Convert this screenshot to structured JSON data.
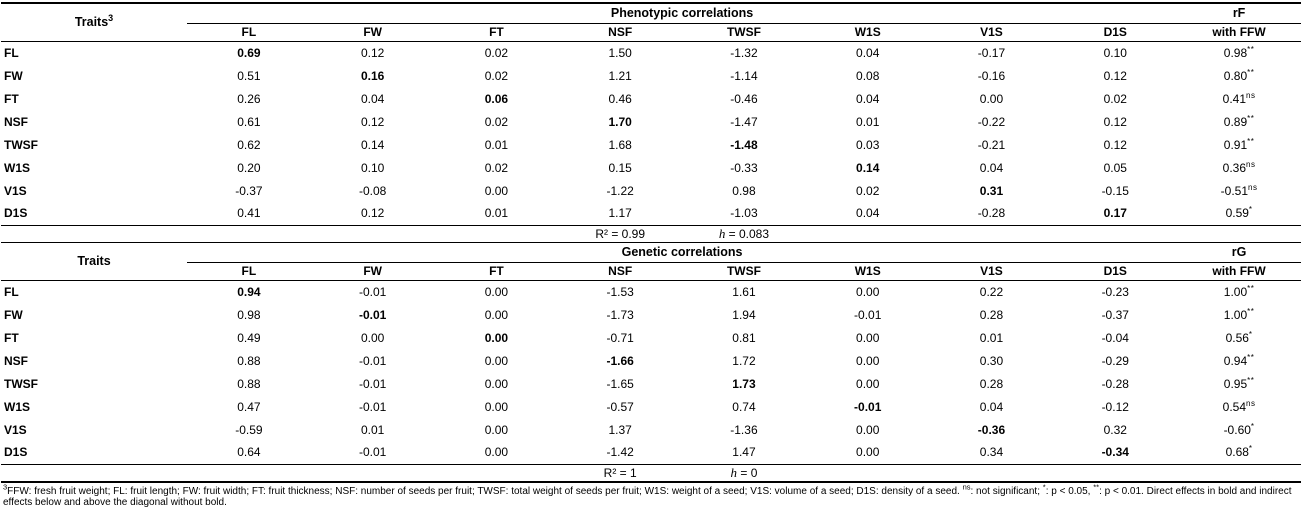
{
  "sections": [
    {
      "traits_label": "Traits",
      "traits_sup": "3",
      "spanner_label": "Phenotypic correlations",
      "r_label": "rF",
      "with_ffw_label": "with FFW",
      "columns": [
        "FL",
        "FW",
        "FT",
        "NSF",
        "TWSF",
        "W1S",
        "V1S",
        "D1S"
      ],
      "rows": [
        {
          "trait": "FL",
          "values": [
            "0.69",
            "0.12",
            "0.02",
            "1.50",
            "-1.32",
            "0.04",
            "-0.17",
            "0.10"
          ],
          "bold": 0,
          "r": "0.98",
          "sig": "**"
        },
        {
          "trait": "FW",
          "values": [
            "0.51",
            "0.16",
            "0.02",
            "1.21",
            "-1.14",
            "0.08",
            "-0.16",
            "0.12"
          ],
          "bold": 1,
          "r": "0.80",
          "sig": "**"
        },
        {
          "trait": "FT",
          "values": [
            "0.26",
            "0.04",
            "0.06",
            "0.46",
            "-0.46",
            "0.04",
            "0.00",
            "0.02"
          ],
          "bold": 2,
          "r": "0.41",
          "sig": "ns"
        },
        {
          "trait": "NSF",
          "values": [
            "0.61",
            "0.12",
            "0.02",
            "1.70",
            "-1.47",
            "0.01",
            "-0.22",
            "0.12"
          ],
          "bold": 3,
          "r": "0.89",
          "sig": "**"
        },
        {
          "trait": "TWSF",
          "values": [
            "0.62",
            "0.14",
            "0.01",
            "1.68",
            "-1.48",
            "0.03",
            "-0.21",
            "0.12"
          ],
          "bold": 4,
          "r": "0.91",
          "sig": "**"
        },
        {
          "trait": "W1S",
          "values": [
            "0.20",
            "0.10",
            "0.02",
            "0.15",
            "-0.33",
            "0.14",
            "0.04",
            "0.05"
          ],
          "bold": 5,
          "r": "0.36",
          "sig": "ns"
        },
        {
          "trait": "V1S",
          "values": [
            "-0.37",
            "-0.08",
            "0.00",
            "-1.22",
            "0.98",
            "0.02",
            "0.31",
            "-0.15"
          ],
          "bold": 6,
          "r": "-0.51",
          "sig": "ns"
        },
        {
          "trait": "D1S",
          "values": [
            "0.41",
            "0.12",
            "0.01",
            "1.17",
            "-1.03",
            "0.04",
            "-0.28",
            "0.17"
          ],
          "bold": 7,
          "r": "0.59",
          "sig": "*"
        }
      ],
      "r2_text": "R² = 0.99",
      "h_label": "h",
      "h_rest": " = 0.083"
    },
    {
      "traits_label": "Traits",
      "traits_sup": "",
      "spanner_label": "Genetic correlations",
      "r_label": "rG",
      "with_ffw_label": "with FFW",
      "columns": [
        "FL",
        "FW",
        "FT",
        "NSF",
        "TWSF",
        "W1S",
        "V1S",
        "D1S"
      ],
      "rows": [
        {
          "trait": "FL",
          "values": [
            "0.94",
            "-0.01",
            "0.00",
            "-1.53",
            "1.61",
            "0.00",
            "0.22",
            "-0.23"
          ],
          "bold": 0,
          "r": "1.00",
          "sig": "**"
        },
        {
          "trait": "FW",
          "values": [
            "0.98",
            "-0.01",
            "0.00",
            "-1.73",
            "1.94",
            "-0.01",
            "0.28",
            "-0.37"
          ],
          "bold": 1,
          "r": "1.00",
          "sig": "**"
        },
        {
          "trait": "FT",
          "values": [
            "0.49",
            "0.00",
            "0.00",
            "-0.71",
            "0.81",
            "0.00",
            "0.01",
            "-0.04"
          ],
          "bold": 2,
          "r": "0.56",
          "sig": "*"
        },
        {
          "trait": "NSF",
          "values": [
            "0.88",
            "-0.01",
            "0.00",
            "-1.66",
            "1.72",
            "0.00",
            "0.30",
            "-0.29"
          ],
          "bold": 3,
          "r": "0.94",
          "sig": "**"
        },
        {
          "trait": "TWSF",
          "values": [
            "0.88",
            "-0.01",
            "0.00",
            "-1.65",
            "1.73",
            "0.00",
            "0.28",
            "-0.28"
          ],
          "bold": 4,
          "r": "0.95",
          "sig": "**"
        },
        {
          "trait": "W1S",
          "values": [
            "0.47",
            "-0.01",
            "0.00",
            "-0.57",
            "0.74",
            "-0.01",
            "0.04",
            "-0.12"
          ],
          "bold": 5,
          "r": "0.54",
          "sig": "ns"
        },
        {
          "trait": "V1S",
          "values": [
            "-0.59",
            "0.01",
            "0.00",
            "1.37",
            "-1.36",
            "0.00",
            "-0.36",
            "0.32"
          ],
          "bold": 6,
          "r": "-0.60",
          "sig": "*"
        },
        {
          "trait": "D1S",
          "values": [
            "0.64",
            "-0.01",
            "0.00",
            "-1.42",
            "1.47",
            "0.00",
            "0.34",
            "-0.34"
          ],
          "bold": 7,
          "r": "0.68",
          "sig": "*"
        }
      ],
      "r2_text": "R² = 1",
      "h_label": "h",
      "h_rest": " = 0"
    }
  ],
  "footnote": {
    "segments": [
      {
        "sup": "3"
      },
      {
        "text": "FFW: fresh fruit weight; FL: fruit length; FW: fruit width; FT: fruit thickness; NSF: number of seeds per fruit; TWSF: total weight of seeds per fruit; W1S: weight of a seed; V1S: volume of a seed; D1S: density of a seed. "
      },
      {
        "sup": "ns"
      },
      {
        "text": ": not significant; "
      },
      {
        "sup": "*"
      },
      {
        "text": ": p < 0.05, "
      },
      {
        "sup": "**"
      },
      {
        "text": ": p < 0.01. Direct effects in bold and indirect effects below and above the diagonal without bold."
      }
    ]
  }
}
